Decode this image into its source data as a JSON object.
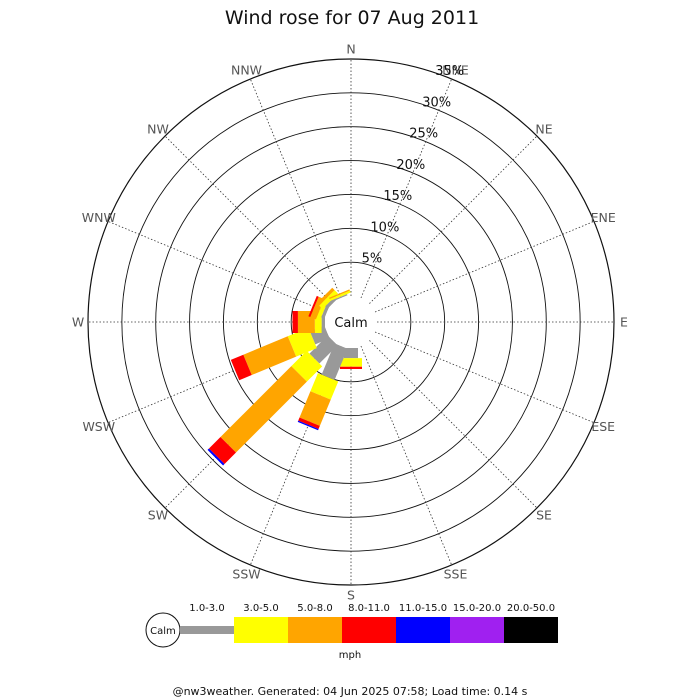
{
  "chart_data": {
    "type": "wind-rose",
    "title": "Wind rose for 07 Aug 2011",
    "directions": [
      "N",
      "NNE",
      "NE",
      "ENE",
      "E",
      "ESE",
      "SE",
      "SSE",
      "S",
      "SSW",
      "SW",
      "WSW",
      "W",
      "WNW",
      "NW",
      "NNW"
    ],
    "ring_labels": [
      "5%",
      "10%",
      "15%",
      "20%",
      "25%",
      "30%",
      "35%"
    ],
    "r_max_percent": 35,
    "calm_label": "Calm",
    "unit": "mph",
    "bins": [
      {
        "label": "1.0-3.0",
        "color": "#999999"
      },
      {
        "label": "3.0-5.0",
        "color": "#ffff00"
      },
      {
        "label": "5.0-8.0",
        "color": "#ffa500"
      },
      {
        "label": "8.0-11.0",
        "color": "#ff0000"
      },
      {
        "label": "11.0-15.0",
        "color": "#0000ff"
      },
      {
        "label": "15.0-20.0",
        "color": "#a020f0"
      },
      {
        "label": "20.0-50.0",
        "color": "#000000"
      }
    ],
    "series": [
      {
        "direction": "N",
        "values": [
          0,
          0,
          0,
          0,
          0,
          0,
          0
        ]
      },
      {
        "direction": "NNE",
        "values": [
          0,
          0,
          0,
          0,
          0,
          0,
          0
        ]
      },
      {
        "direction": "NE",
        "values": [
          0,
          0,
          0,
          0,
          0,
          0,
          0
        ]
      },
      {
        "direction": "ENE",
        "values": [
          0,
          0,
          0,
          0,
          0,
          0,
          0
        ]
      },
      {
        "direction": "E",
        "values": [
          0,
          0,
          0,
          0,
          0,
          0,
          0
        ]
      },
      {
        "direction": "ESE",
        "values": [
          0,
          0,
          0,
          0,
          0,
          0,
          0
        ]
      },
      {
        "direction": "SE",
        "values": [
          0,
          0,
          0,
          0,
          0,
          0,
          0
        ]
      },
      {
        "direction": "SSE",
        "values": [
          0,
          0,
          0,
          0,
          0,
          0,
          0
        ]
      },
      {
        "direction": "S",
        "values": [
          1.5,
          1.2,
          0.1,
          0.3,
          0,
          0,
          0
        ]
      },
      {
        "direction": "SSW",
        "values": [
          5.0,
          2.9,
          4.2,
          0.5,
          0.2,
          0,
          0
        ]
      },
      {
        "direction": "SW",
        "values": [
          3.8,
          3.2,
          14.8,
          2.4,
          0.3,
          0,
          0
        ]
      },
      {
        "direction": "WSW",
        "values": [
          2.3,
          3.3,
          7.1,
          2.0,
          0,
          0,
          0
        ]
      },
      {
        "direction": "W",
        "values": [
          0.5,
          1.0,
          2.5,
          0.8,
          0,
          0,
          0
        ]
      },
      {
        "direction": "WNW",
        "values": [
          0.5,
          0.6,
          0.9,
          0.3,
          0,
          0,
          0
        ]
      },
      {
        "direction": "NW",
        "values": [
          0.5,
          0.7,
          0.5,
          0,
          0,
          0,
          0
        ]
      },
      {
        "direction": "NNW",
        "values": [
          0.2,
          0.3,
          0.2,
          0,
          0,
          0,
          0
        ]
      }
    ]
  },
  "footer": "@nw3weather. Generated: 04 Jun 2025 07:58; Load time: 0.14 s"
}
